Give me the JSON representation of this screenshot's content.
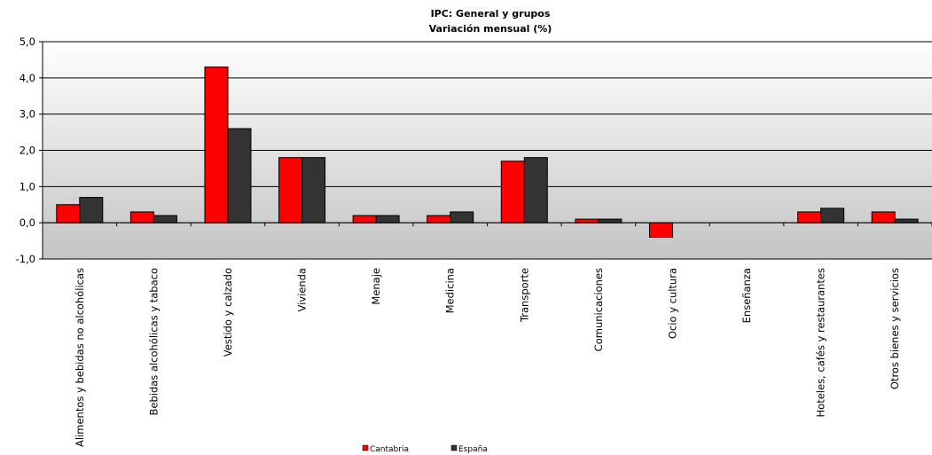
{
  "chart_data": {
    "type": "bar",
    "title": "IPC: General  y grupos",
    "subtitle": "Variación mensual  (%)",
    "categories": [
      "Alimentos y bebidas no alcohólicas",
      "Bebidas alcohólicas y tabaco",
      "Vestido y calzado",
      "Vivienda",
      "Menaje",
      "Medicina",
      "Transporte",
      "Comunicaciones",
      "Ocio y cultura",
      "Enseñanza",
      "Hoteles, cafés y restaurantes",
      "Otros bienes y servicios"
    ],
    "series": [
      {
        "name": "Cantabria",
        "color": "#ff0000",
        "values": [
          0.5,
          0.3,
          4.3,
          1.8,
          0.2,
          0.2,
          1.7,
          0.1,
          -0.4,
          0.0,
          0.3,
          0.3
        ]
      },
      {
        "name": "España",
        "color": "#333333",
        "values": [
          0.7,
          0.2,
          2.6,
          1.8,
          0.2,
          0.3,
          1.8,
          0.1,
          0.0,
          0.0,
          0.4,
          0.1
        ]
      }
    ],
    "ylim": [
      -1.0,
      5.0
    ],
    "yticks": [
      "-1,0",
      "0,0",
      "1,0",
      "2,0",
      "3,0",
      "4,0",
      "5,0"
    ],
    "grid": true,
    "legend": "bottom-center"
  }
}
